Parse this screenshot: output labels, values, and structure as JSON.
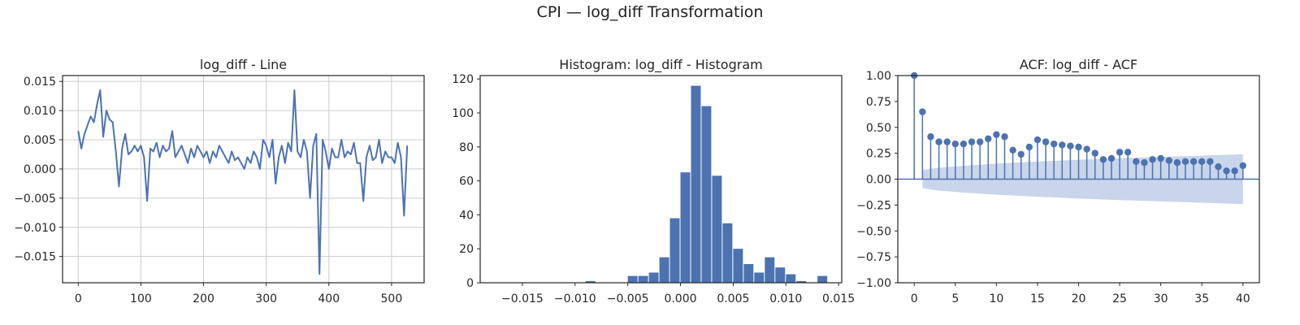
{
  "figure": {
    "suptitle": "CPI — log_diff Transformation"
  },
  "colors": {
    "series": "#4c72b0",
    "band": "#c9d5ea",
    "grid": "#cccccc",
    "spine": "#262626"
  },
  "chart_data": [
    {
      "type": "line",
      "title": "log_diff - Line",
      "xlabel": "",
      "ylabel": "",
      "xlim": [
        -25,
        552
      ],
      "ylim": [
        -0.0195,
        0.016
      ],
      "grid": true,
      "xticks": [
        0,
        100,
        200,
        300,
        400,
        500
      ],
      "yticks": [
        -0.015,
        -0.01,
        -0.005,
        0.0,
        0.005,
        0.01,
        0.015
      ],
      "x": [
        0,
        5,
        10,
        15,
        20,
        25,
        30,
        35,
        40,
        45,
        50,
        55,
        60,
        65,
        70,
        75,
        80,
        85,
        90,
        95,
        100,
        105,
        110,
        115,
        120,
        125,
        130,
        135,
        140,
        145,
        150,
        155,
        160,
        165,
        170,
        175,
        180,
        185,
        190,
        195,
        200,
        205,
        210,
        215,
        220,
        225,
        230,
        235,
        240,
        245,
        250,
        255,
        260,
        265,
        270,
        275,
        280,
        285,
        290,
        295,
        300,
        305,
        310,
        315,
        320,
        325,
        330,
        335,
        340,
        345,
        350,
        355,
        360,
        365,
        370,
        375,
        380,
        385,
        390,
        395,
        400,
        405,
        410,
        415,
        420,
        425,
        430,
        435,
        440,
        445,
        450,
        455,
        460,
        465,
        470,
        475,
        480,
        485,
        490,
        495,
        500,
        505,
        510,
        515,
        520,
        525
      ],
      "y": [
        0.0065,
        0.0035,
        0.006,
        0.0075,
        0.009,
        0.008,
        0.011,
        0.0135,
        0.0055,
        0.01,
        0.0085,
        0.008,
        0.003,
        -0.003,
        0.0035,
        0.006,
        0.0025,
        0.003,
        0.004,
        0.003,
        0.004,
        0.002,
        -0.0055,
        0.0035,
        0.003,
        0.0045,
        0.002,
        0.004,
        0.003,
        0.0035,
        0.0065,
        0.002,
        0.003,
        0.004,
        0.0025,
        0.001,
        0.0035,
        0.002,
        0.004,
        0.003,
        0.002,
        0.003,
        0.001,
        0.003,
        0.002,
        0.004,
        0.003,
        0.002,
        0.001,
        0.003,
        0.0015,
        0.002,
        0.001,
        0.0,
        0.002,
        0.001,
        0.003,
        0.002,
        0.0,
        0.005,
        0.004,
        0.002,
        0.005,
        -0.0025,
        0.002,
        0.004,
        0.001,
        0.0045,
        0.003,
        0.0135,
        0.003,
        0.002,
        0.005,
        0.003,
        -0.005,
        0.004,
        0.006,
        -0.018,
        0.005,
        0.003,
        0.0,
        0.0035,
        0.002,
        0.002,
        0.005,
        0.002,
        0.003,
        0.0025,
        0.0045,
        0.001,
        0.001,
        -0.0055,
        0.002,
        0.004,
        0.0015,
        0.002,
        0.005,
        0.001,
        0.003,
        0.002,
        0.002,
        0.001,
        0.0045,
        0.002,
        -0.008,
        0.004
      ]
    },
    {
      "type": "bar",
      "title": "Histogram: log_diff - Histogram",
      "xlabel": "",
      "ylabel": "",
      "xlim": [
        -0.019,
        0.0153
      ],
      "ylim": [
        0,
        122
      ],
      "grid": false,
      "xticks": [
        -0.015,
        -0.01,
        -0.005,
        0.0,
        0.005,
        0.01,
        0.015
      ],
      "yticks": [
        0,
        20,
        40,
        60,
        80,
        100,
        120
      ],
      "bin_width": 0.001,
      "categories": [
        -0.009,
        -0.005,
        -0.004,
        -0.003,
        -0.002,
        -0.001,
        0.0,
        0.001,
        0.002,
        0.003,
        0.004,
        0.005,
        0.006,
        0.007,
        0.008,
        0.009,
        0.01,
        0.011,
        0.013
      ],
      "values": [
        1,
        4,
        4,
        6,
        15,
        38,
        65,
        116,
        104,
        63,
        35,
        20,
        11,
        6,
        15,
        9,
        5,
        1,
        4
      ]
    },
    {
      "type": "scatter",
      "title": "ACF: log_diff - ACF",
      "xlabel": "",
      "ylabel": "",
      "xlim": [
        -2,
        42
      ],
      "ylim": [
        -1.0,
        1.0
      ],
      "grid": false,
      "xticks": [
        0,
        5,
        10,
        15,
        20,
        25,
        30,
        35,
        40
      ],
      "yticks": [
        -1.0,
        -0.75,
        -0.5,
        -0.25,
        0.0,
        0.25,
        0.5,
        0.75,
        1.0
      ],
      "x": [
        0,
        1,
        2,
        3,
        4,
        5,
        6,
        7,
        8,
        9,
        10,
        11,
        12,
        13,
        14,
        15,
        16,
        17,
        18,
        19,
        20,
        21,
        22,
        23,
        24,
        25,
        26,
        27,
        28,
        29,
        30,
        31,
        32,
        33,
        34,
        35,
        36,
        37,
        38,
        39,
        40
      ],
      "y": [
        1.0,
        0.65,
        0.41,
        0.36,
        0.36,
        0.34,
        0.34,
        0.36,
        0.36,
        0.39,
        0.43,
        0.41,
        0.28,
        0.24,
        0.31,
        0.38,
        0.36,
        0.34,
        0.33,
        0.32,
        0.31,
        0.29,
        0.25,
        0.19,
        0.2,
        0.26,
        0.26,
        0.17,
        0.16,
        0.19,
        0.2,
        0.18,
        0.16,
        0.17,
        0.17,
        0.17,
        0.17,
        0.12,
        0.08,
        0.08,
        0.13
      ],
      "confidence_band": {
        "lag": [
          1,
          2,
          3,
          5,
          10,
          15,
          20,
          25,
          30,
          35,
          40
        ],
        "upper": [
          0.086,
          0.101,
          0.11,
          0.124,
          0.15,
          0.17,
          0.187,
          0.202,
          0.215,
          0.227,
          0.24
        ],
        "lower": [
          -0.086,
          -0.101,
          -0.11,
          -0.124,
          -0.15,
          -0.17,
          -0.187,
          -0.202,
          -0.215,
          -0.227,
          -0.24
        ]
      }
    }
  ]
}
